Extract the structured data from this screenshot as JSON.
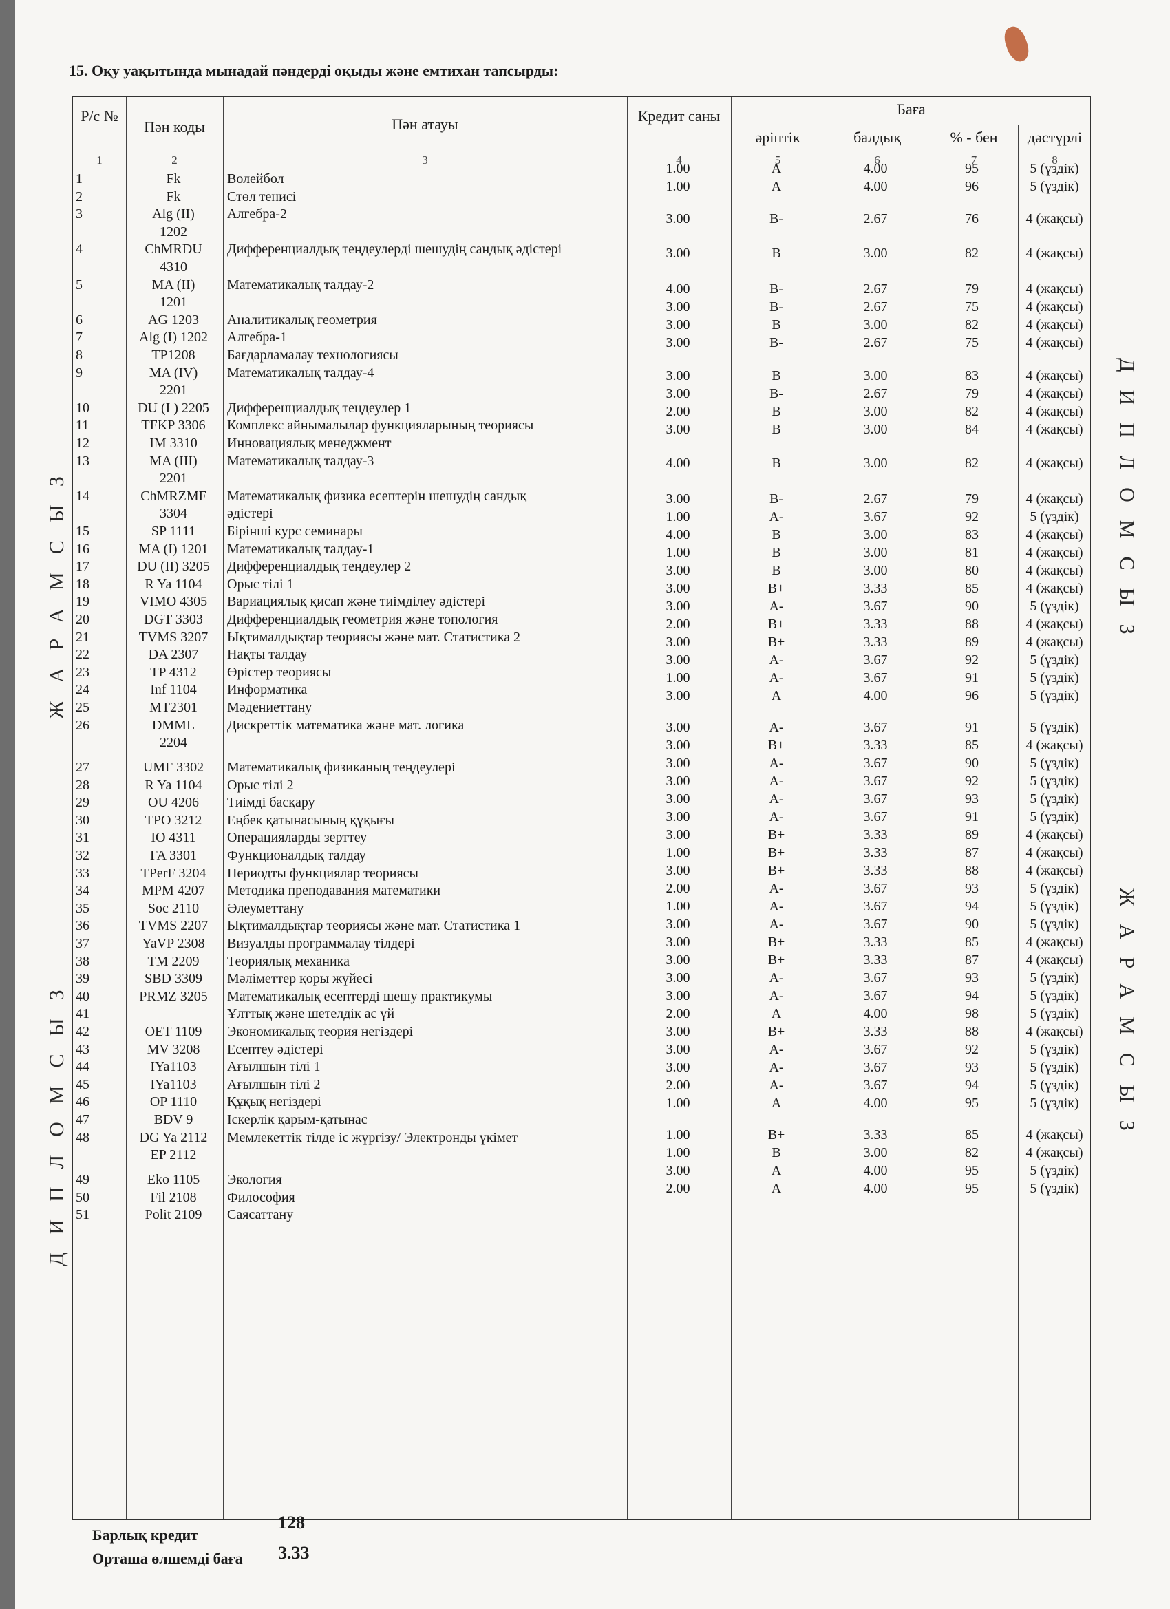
{
  "title": "15. Оқу уақытында мынадай пәндерді оқыды және емтихан тапсырды:",
  "headers": {
    "no": "Р/с №",
    "code": "Пән коды",
    "name": "Пән атауы",
    "credits": "Кредит саны",
    "grade": "Баға",
    "letter": "әріптік",
    "points": "балдық",
    "percent": "% - бен",
    "traditional": "дәстүрлі"
  },
  "column_numbers": [
    "1",
    "2",
    "3",
    "4",
    "5",
    "6",
    "7",
    "8"
  ],
  "courses": [
    {
      "no": "1",
      "code": "Fk",
      "name": "Волейбол"
    },
    {
      "no": "2",
      "code": "Fk",
      "name": "Стөл тенисі"
    },
    {
      "no": "3",
      "code": "Alg (II)",
      "code2": "1202",
      "name": "Алгебра-2"
    },
    {
      "no": "4",
      "code": "ChMRDU",
      "code2": "4310",
      "name": "Дифференциалдық теңдеулерді шешудің сандық әдістері"
    },
    {
      "no": "5",
      "code": "MA (II)",
      "code2": "1201",
      "name": "Математикалық талдау-2"
    },
    {
      "no": "6",
      "code": "AG 1203",
      "name": "Аналитикалық  геометрия"
    },
    {
      "no": "7",
      "code": "Alg (I) 1202",
      "name": "Алгебра-1"
    },
    {
      "no": "8",
      "code": "TP1208",
      "name": "Бағдарламалау технологиясы"
    },
    {
      "no": "9",
      "code": "MA (IV)",
      "code2": "2201",
      "name": "Математикалық талдау-4"
    },
    {
      "no": "10",
      "code": "DU (I ) 2205",
      "name": "Дифференциалдық теңдеулер 1"
    },
    {
      "no": "11",
      "code": "TFKP 3306",
      "name": "Комплекс айнымалылар функцияларының теориясы"
    },
    {
      "no": "12",
      "code": "IM 3310",
      "name": "Инновациялық менеджмент"
    },
    {
      "no": "13",
      "code": "MA (III)",
      "code2": "2201",
      "name": "Математикалық талдау-3"
    },
    {
      "no": "14",
      "code": "ChMRZMF",
      "code2": "3304",
      "name": "Математикалық физика есептерін шешудің сандық",
      "name2": "әдістері"
    },
    {
      "no": "15",
      "code": "SP 1111",
      "name": "Бірінші курс семинары"
    },
    {
      "no": "16",
      "code": "MA (I) 1201",
      "name": "Математикалық талдау-1"
    },
    {
      "no": "17",
      "code": "DU (II) 3205",
      "name": "Дифференциалдық теңдеулер 2"
    },
    {
      "no": "18",
      "code": "R Ya 1104",
      "name": "Орыс тілі 1"
    },
    {
      "no": "19",
      "code": "VIMO 4305",
      "name": "Вариациялық қисап және тиімділеу әдістері"
    },
    {
      "no": "20",
      "code": "DGT 3303",
      "name": "Дифференциалдық геометрия және топология"
    },
    {
      "no": "21",
      "code": "TVMS 3207",
      "name": "Ықтималдықтар теориясы және мат. Статистика 2"
    },
    {
      "no": "22",
      "code": "DA 2307",
      "name": "Нақты талдау"
    },
    {
      "no": "23",
      "code": "TP 4312",
      "name": "Өрістер теориясы"
    },
    {
      "no": "24",
      "code": "Inf 1104",
      "name": "Информатика"
    },
    {
      "no": "25",
      "code": "MT2301",
      "name": "Мәдениеттану"
    },
    {
      "no": "26",
      "code": "DMML",
      "code2": "2204",
      "name": "Дискреттік математика және мат. логика"
    },
    {
      "no": "27",
      "code": "UMF 3302",
      "name": "Математикалық  физиканың теңдеулері"
    },
    {
      "no": "28",
      "code": "R Ya 1104",
      "name": "Орыс тілі 2"
    },
    {
      "no": "29",
      "code": "OU 4206",
      "name": "Тиімді  басқару"
    },
    {
      "no": "30",
      "code": "TPO 3212",
      "name": "Еңбек қатынасының құқығы"
    },
    {
      "no": "31",
      "code": "IO 4311",
      "name": "Операцияларды зерттеу"
    },
    {
      "no": "32",
      "code": "FA 3301",
      "name": "Функционалдық  талдау"
    },
    {
      "no": "33",
      "code": "TPerF 3204",
      "name": "Периодты функциялар теориясы"
    },
    {
      "no": "34",
      "code": "MPM 4207",
      "name": "Методика преподавания математики"
    },
    {
      "no": "35",
      "code": "Soc 2110",
      "name": "Әлеуметтану"
    },
    {
      "no": "36",
      "code": "TVMS 2207",
      "name": "Ықтималдықтар теориясы және мат. Статистика 1"
    },
    {
      "no": "37",
      "code": "YaVP 2308",
      "name": "Визуалды программалау тілдері"
    },
    {
      "no": "38",
      "code": "TM 2209",
      "name": "Теориялық механика"
    },
    {
      "no": "39",
      "code": "SBD 3309",
      "name": "Мәліметтер қоры жүйесі"
    },
    {
      "no": "40",
      "code": "PRMZ 3205",
      "name": "Математикалық есептерді шешу практикумы"
    },
    {
      "no": "41",
      "code": "",
      "name": "Ұлттық және шетелдік ас үй"
    },
    {
      "no": "42",
      "code": "OET 1109",
      "name": "Экономикалық теория негіздері"
    },
    {
      "no": "43",
      "code": "MV 3208",
      "name": "Есептеу әдістері"
    },
    {
      "no": "44",
      "code": "IYa1103",
      "name": "Ағылшын тілі 1"
    },
    {
      "no": "45",
      "code": "IYa1103",
      "name": "Ағылшын тілі 2"
    },
    {
      "no": "46",
      "code": "OP 1110",
      "name": "Құқық негіздері"
    },
    {
      "no": "47",
      "code": "BDV 9",
      "name": "Іскерлік қарым-қатынас"
    },
    {
      "no": "48",
      "code": "DG Ya 2112",
      "code2": "EP 2112",
      "name": "Мемлекеттік тілде іс жүргізу/ Электронды үкімет"
    },
    {
      "no": "49",
      "code": "Eko 1105",
      "name": "Экология"
    },
    {
      "no": "50",
      "code": "Fil 2108",
      "name": "Философия"
    },
    {
      "no": "51",
      "code": "Polit 2109",
      "name": "Саясаттану"
    }
  ],
  "grades": [
    {
      "credits": "1.00",
      "letter": "A",
      "points": "4.00",
      "percent": "95",
      "traditional": "5 (үздік)"
    },
    {
      "credits": "1.00",
      "letter": "A",
      "points": "4.00",
      "percent": "96",
      "traditional": "5 (үздік)"
    },
    {
      "credits": "3.00",
      "letter": "B-",
      "points": "2.67",
      "percent": "76",
      "traditional": "4 (жақсы)"
    },
    {
      "credits": "3.00",
      "letter": "B",
      "points": "3.00",
      "percent": "82",
      "traditional": "4 (жақсы)"
    },
    {
      "credits": "4.00",
      "letter": "B-",
      "points": "2.67",
      "percent": "79",
      "traditional": "4 (жақсы)"
    },
    {
      "credits": "3.00",
      "letter": "B-",
      "points": "2.67",
      "percent": "75",
      "traditional": "4 (жақсы)"
    },
    {
      "credits": "3.00",
      "letter": "B",
      "points": "3.00",
      "percent": "82",
      "traditional": "4 (жақсы)"
    },
    {
      "credits": "3.00",
      "letter": "B-",
      "points": "2.67",
      "percent": "75",
      "traditional": "4 (жақсы)"
    },
    {
      "credits": "3.00",
      "letter": "B",
      "points": "3.00",
      "percent": "83",
      "traditional": "4 (жақсы)"
    },
    {
      "credits": "3.00",
      "letter": "B-",
      "points": "2.67",
      "percent": "79",
      "traditional": "4 (жақсы)"
    },
    {
      "credits": "2.00",
      "letter": "B",
      "points": "3.00",
      "percent": "82",
      "traditional": "4 (жақсы)"
    },
    {
      "credits": "3.00",
      "letter": "B",
      "points": "3.00",
      "percent": "84",
      "traditional": "4 (жақсы)"
    },
    {
      "credits": "4.00",
      "letter": "B",
      "points": "3.00",
      "percent": "82",
      "traditional": "4 (жақсы)"
    },
    {
      "credits": "3.00",
      "letter": "B-",
      "points": "2.67",
      "percent": "79",
      "traditional": "4 (жақсы)"
    },
    {
      "credits": "1.00",
      "letter": "A-",
      "points": "3.67",
      "percent": "92",
      "traditional": "5 (үздік)"
    },
    {
      "credits": "4.00",
      "letter": "B",
      "points": "3.00",
      "percent": "83",
      "traditional": "4 (жақсы)"
    },
    {
      "credits": "1.00",
      "letter": "B",
      "points": "3.00",
      "percent": "81",
      "traditional": "4 (жақсы)"
    },
    {
      "credits": "3.00",
      "letter": "B",
      "points": "3.00",
      "percent": "80",
      "traditional": "4 (жақсы)"
    },
    {
      "credits": "3.00",
      "letter": "B+",
      "points": "3.33",
      "percent": "85",
      "traditional": "4 (жақсы)"
    },
    {
      "credits": "3.00",
      "letter": "A-",
      "points": "3.67",
      "percent": "90",
      "traditional": "5 (үздік)"
    },
    {
      "credits": "2.00",
      "letter": "B+",
      "points": "3.33",
      "percent": "88",
      "traditional": "4 (жақсы)"
    },
    {
      "credits": "3.00",
      "letter": "B+",
      "points": "3.33",
      "percent": "89",
      "traditional": "4 (жақсы)"
    },
    {
      "credits": "3.00",
      "letter": "A-",
      "points": "3.67",
      "percent": "92",
      "traditional": "5 (үздік)"
    },
    {
      "credits": "1.00",
      "letter": "A-",
      "points": "3.67",
      "percent": "91",
      "traditional": "5 (үздік)"
    },
    {
      "credits": "3.00",
      "letter": "A",
      "points": "4.00",
      "percent": "96",
      "traditional": "5 (үздік)"
    },
    {
      "credits": "3.00",
      "letter": "A-",
      "points": "3.67",
      "percent": "91",
      "traditional": "5 (үздік)"
    },
    {
      "credits": "3.00",
      "letter": "B+",
      "points": "3.33",
      "percent": "85",
      "traditional": "4 (жақсы)"
    },
    {
      "credits": "3.00",
      "letter": "A-",
      "points": "3.67",
      "percent": "90",
      "traditional": "5 (үздік)"
    },
    {
      "credits": "3.00",
      "letter": "A-",
      "points": "3.67",
      "percent": "92",
      "traditional": "5 (үздік)"
    },
    {
      "credits": "3.00",
      "letter": "A-",
      "points": "3.67",
      "percent": "93",
      "traditional": "5 (үздік)"
    },
    {
      "credits": "3.00",
      "letter": "A-",
      "points": "3.67",
      "percent": "91",
      "traditional": "5 (үздік)"
    },
    {
      "credits": "3.00",
      "letter": "B+",
      "points": "3.33",
      "percent": "89",
      "traditional": "4 (жақсы)"
    },
    {
      "credits": "1.00",
      "letter": "B+",
      "points": "3.33",
      "percent": "87",
      "traditional": "4 (жақсы)"
    },
    {
      "credits": "3.00",
      "letter": "B+",
      "points": "3.33",
      "percent": "88",
      "traditional": "4 (жақсы)"
    },
    {
      "credits": "2.00",
      "letter": "A-",
      "points": "3.67",
      "percent": "93",
      "traditional": "5 (үздік)"
    },
    {
      "credits": "1.00",
      "letter": "A-",
      "points": "3.67",
      "percent": "94",
      "traditional": "5 (үздік)"
    },
    {
      "credits": "3.00",
      "letter": "A-",
      "points": "3.67",
      "percent": "90",
      "traditional": "5 (үздік)"
    },
    {
      "credits": "3.00",
      "letter": "B+",
      "points": "3.33",
      "percent": "85",
      "traditional": "4 (жақсы)"
    },
    {
      "credits": "3.00",
      "letter": "B+",
      "points": "3.33",
      "percent": "87",
      "traditional": "4 (жақсы)"
    },
    {
      "credits": "3.00",
      "letter": "A-",
      "points": "3.67",
      "percent": "93",
      "traditional": "5 (үздік)"
    },
    {
      "credits": "3.00",
      "letter": "A-",
      "points": "3.67",
      "percent": "94",
      "traditional": "5 (үздік)"
    },
    {
      "credits": "2.00",
      "letter": "A",
      "points": "4.00",
      "percent": "98",
      "traditional": "5 (үздік)"
    },
    {
      "credits": "3.00",
      "letter": "B+",
      "points": "3.33",
      "percent": "88",
      "traditional": "4 (жақсы)"
    },
    {
      "credits": "3.00",
      "letter": "A-",
      "points": "3.67",
      "percent": "92",
      "traditional": "5 (үздік)"
    },
    {
      "credits": "3.00",
      "letter": "A-",
      "points": "3.67",
      "percent": "93",
      "traditional": "5 (үздік)"
    },
    {
      "credits": "2.00",
      "letter": "A-",
      "points": "3.67",
      "percent": "94",
      "traditional": "5 (үздік)"
    },
    {
      "credits": "1.00",
      "letter": "A",
      "points": "4.00",
      "percent": "95",
      "traditional": "5 (үздік)"
    },
    {
      "credits": "1.00",
      "letter": "B+",
      "points": "3.33",
      "percent": "85",
      "traditional": "4 (жақсы)"
    },
    {
      "credits": "1.00",
      "letter": "B",
      "points": "3.00",
      "percent": "82",
      "traditional": "4 (жақсы)"
    },
    {
      "credits": "3.00",
      "letter": "A",
      "points": "4.00",
      "percent": "95",
      "traditional": "5 (үздік)"
    },
    {
      "credits": "2.00",
      "letter": "A",
      "points": "4.00",
      "percent": "95",
      "traditional": "5 (үздік)"
    }
  ],
  "side_marks": {
    "left_top": "ЖАРАМСЫЗ",
    "left_bottom": "ДИПЛОМСЫЗ",
    "right_top": "ДИПЛОМСЫЗ",
    "right_bottom": "ЖАРАМСЫЗ"
  },
  "footer": {
    "total_credits_label": "Барлық кредит",
    "total_credits": "128",
    "gpa_label": "Орташа өлшемді баға",
    "gpa": "3.33"
  }
}
